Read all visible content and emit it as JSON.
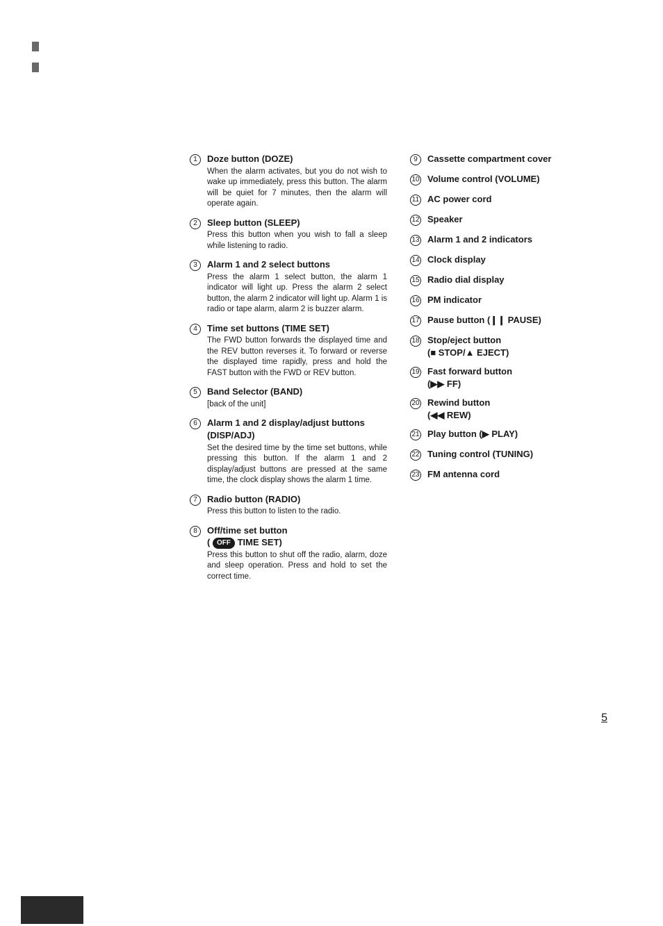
{
  "page_number": "5",
  "text_color": "#1a1a1a",
  "bg_color": "#ffffff",
  "left_items": [
    {
      "n": "1",
      "title": "Doze button (DOZE)",
      "desc": "When the alarm activates, but you do not wish to wake up immediately, press this button. The alarm will be quiet for 7 minutes, then the alarm will operate again."
    },
    {
      "n": "2",
      "title": "Sleep button (SLEEP)",
      "desc": "Press this button when you wish to fall a sleep while listening to radio."
    },
    {
      "n": "3",
      "title": "Alarm 1 and 2 select buttons",
      "desc": "Press the alarm 1 select button, the alarm 1 indicator will light up. Press the alarm 2 select button, the alarm 2 indicator will light up. Alarm 1 is radio or tape alarm, alarm 2 is buzzer alarm."
    },
    {
      "n": "4",
      "title": "Time set buttons (TIME SET)",
      "desc": "The FWD button forwards the displayed time and the REV button reverses it. To forward or reverse the displayed time rapidly, press and hold the FAST button with the FWD or REV button."
    },
    {
      "n": "5",
      "title": "Band Selector (BAND)",
      "desc": "[back of the unit]"
    },
    {
      "n": "6",
      "title": "Alarm 1 and 2 display/adjust buttons (DISP/ADJ)",
      "desc": "Set the desired time by the time set buttons, while pressing this button. If the alarm 1 and 2 display/adjust buttons are pressed at the same time, the clock display shows the alarm 1 time."
    },
    {
      "n": "7",
      "title": "Radio button (RADIO)",
      "desc": "Press this button to listen to the radio."
    },
    {
      "n": "8",
      "title_html": true,
      "title_prefix": "Off/time set button",
      "title_pill": "OFF",
      "title_suffix": " TIME SET)",
      "desc": "Press this button to shut off the radio, alarm, doze and sleep operation. Press and hold to set the correct time."
    }
  ],
  "right_items": [
    {
      "n": "9",
      "title": "Cassette compartment cover"
    },
    {
      "n": "10",
      "title": "Volume control (VOLUME)"
    },
    {
      "n": "11",
      "title": "AC power cord"
    },
    {
      "n": "12",
      "title": "Speaker"
    },
    {
      "n": "13",
      "title": "Alarm 1 and 2 indicators"
    },
    {
      "n": "14",
      "title": "Clock display"
    },
    {
      "n": "15",
      "title": "Radio dial display"
    },
    {
      "n": "16",
      "title": "PM indicator"
    },
    {
      "n": "17",
      "title": "Pause button (❙❙ PAUSE)"
    },
    {
      "n": "18",
      "title": "Stop/eject button\n(■ STOP/▲ EJECT)"
    },
    {
      "n": "19",
      "title": "Fast forward button\n(▶▶ FF)"
    },
    {
      "n": "20",
      "title": "Rewind button\n(◀◀ REW)"
    },
    {
      "n": "21",
      "title": "Play button (▶ PLAY)"
    },
    {
      "n": "22",
      "title": "Tuning control (TUNING)"
    },
    {
      "n": "23",
      "title": "FM antenna cord"
    }
  ]
}
